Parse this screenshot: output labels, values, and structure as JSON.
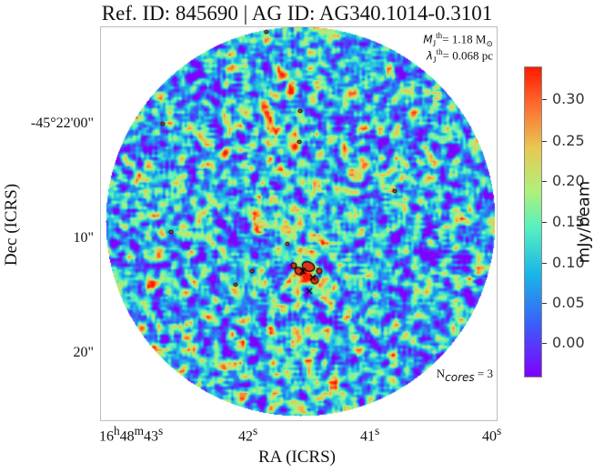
{
  "title": {
    "ref_label": "Ref. ID: 845690",
    "separator": "|",
    "ag_label": "AG ID: AG340.1014-0.3101"
  },
  "annotations": {
    "mass_symbol": "M",
    "mass_sub": "J",
    "mass_sup": "th",
    "mass_value": "= 1.18 M",
    "mass_unit_sub": "⊙",
    "length_symbol": "λ",
    "length_sub": "J",
    "length_sup": "th",
    "length_value": "= 0.068 pc",
    "ncores_prefix": "N",
    "ncores_sub": "cores",
    "ncores_value": " = 3"
  },
  "axes": {
    "x_title": "RA (ICRS)",
    "y_title": "Dec (ICRS)",
    "y_ticks": [
      "-45°22'00\"",
      "10\"",
      "20\""
    ],
    "x_ticks": [
      {
        "hh": "16",
        "h": "h",
        "mm": "48",
        "m": "m",
        "ss": "43",
        "s": "s"
      },
      {
        "ss": "42",
        "s": "s"
      },
      {
        "ss": "41",
        "s": "s"
      },
      {
        "ss": "40",
        "s": "s"
      }
    ]
  },
  "colorbar": {
    "label": "mJy/beam",
    "ticks": [
      "0.30",
      "0.25",
      "0.20",
      "0.15",
      "0.10",
      "0.05",
      "0.00"
    ],
    "vmin": -0.05,
    "vmax": 0.34
  },
  "colors": {
    "background_noise_low": "#7f00ff",
    "noise_mid": "#19b5e8",
    "peak": "#ff1a00",
    "contour": "#000000"
  }
}
